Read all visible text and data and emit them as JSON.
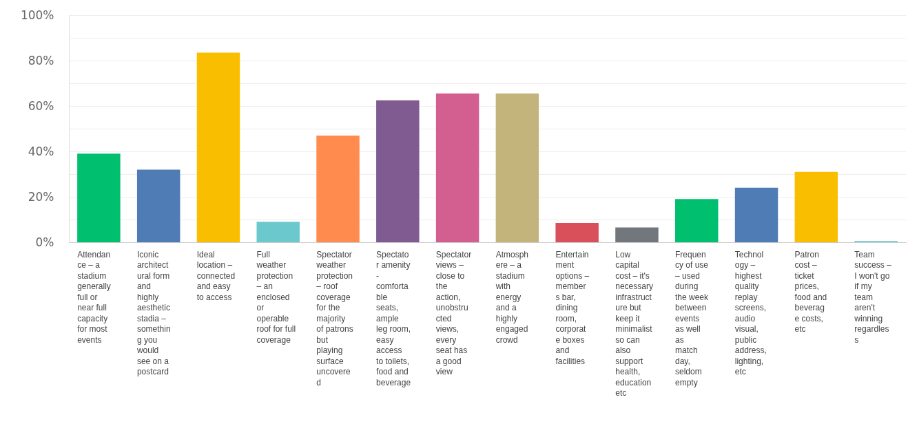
{
  "chart_data": {
    "type": "bar",
    "categories": [
      "Attendan\nce – a\nstadium\ngenerally\nfull or\nnear full\ncapacity\nfor most\nevents",
      "Iconic\narchitect\nural form\nand\nhighly\naesthetic\nstadia –\nsomethin\ng you\nwould\nsee on a\npostcard",
      "Ideal\nlocation –\nconnected\nand easy\nto access",
      "Full\nweather\nprotection\n– an\nenclosed\nor\noperable\nroof for full\ncoverage",
      "Spectator\nweather\nprotection\n– roof\ncoverage\nfor the\nmajority\nof patrons\nbut\nplaying\nsurface\nuncovere\nd",
      "Spectato\nr amenity\n-\ncomforta\nble\nseats,\nample\nleg room,\neasy\naccess\nto toilets,\nfood and\nbeverage",
      "Spectator\nviews –\nclose to\nthe\naction,\nunobstru\ncted\nviews,\nevery\nseat has\na good\nview",
      "Atmosph\nere – a\nstadium\nwith\nenergy\nand a\nhighly\nengaged\ncrowd",
      "Entertain\nment\noptions –\nmember\ns bar,\ndining\nroom,\ncorporat\ne boxes\nand\nfacilities",
      "Low\ncapital\ncost – it's\nnecessary\ninfrastruct\nure but\nkeep it\nminimalist\nso can\nalso\nsupport\nhealth,\neducation\netc",
      "Frequen\ncy of use\n– used\nduring\nthe week\nbetween\nevents\nas well\nas\nmatch\nday,\nseldom\nempty",
      "Technol\nogy –\nhighest\nquality\nreplay\nscreens,\naudio\nvisual,\npublic\naddress,\nlighting,\netc",
      "Patron\ncost –\nticket\nprices,\nfood and\nbeverag\ne costs,\netc",
      "Team\nsuccess –\nI won't go\nif my\nteam\naren't\nwinning\nregardles\ns"
    ],
    "values": [
      39,
      32,
      83.5,
      9,
      47,
      62.5,
      65.5,
      65.5,
      8.5,
      6.5,
      19,
      24,
      31,
      0.5
    ],
    "colors": [
      "#00bf6f",
      "#507cb6",
      "#f9be00",
      "#6bc8cd",
      "#ff8b4f",
      "#7f5b91",
      "#d25f90",
      "#c3b47b",
      "#d94f5a",
      "#71777d",
      "#00bf6f",
      "#507cb6",
      "#f9be00",
      "#6bc8cd"
    ],
    "ylim": [
      0,
      100
    ],
    "yticks": [
      {
        "value": 0,
        "label": "0%"
      },
      {
        "value": 10,
        "label": null
      },
      {
        "value": 20,
        "label": "20%"
      },
      {
        "value": 30,
        "label": null
      },
      {
        "value": 40,
        "label": "40%"
      },
      {
        "value": 50,
        "label": null
      },
      {
        "value": 60,
        "label": "60%"
      },
      {
        "value": 70,
        "label": null
      },
      {
        "value": 80,
        "label": "80%"
      },
      {
        "value": 90,
        "label": null
      },
      {
        "value": 100,
        "label": "100%"
      }
    ],
    "grid": true
  }
}
